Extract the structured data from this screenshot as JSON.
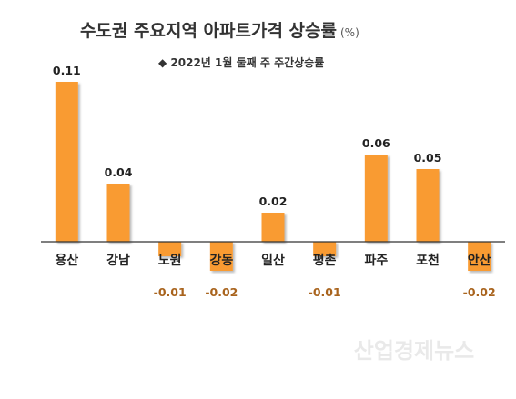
{
  "chart_data": {
    "type": "bar",
    "title": "수도권 주요지역 아파트가격 상승률",
    "unit": "(%)",
    "legend": "◆ 2022년 1월 둘째 주 주간상승률",
    "categories": [
      "용산",
      "강남",
      "노원",
      "강동",
      "일산",
      "평촌",
      "파주",
      "포천",
      "안산"
    ],
    "values": [
      0.11,
      0.04,
      -0.01,
      -0.02,
      0.02,
      -0.01,
      0.06,
      0.05,
      -0.02
    ],
    "value_labels": [
      "0.11",
      "0.04",
      "-0.01",
      "-0.02",
      "0.02",
      "-0.01",
      "0.06",
      "0.05",
      "-0.02"
    ],
    "ylim": [
      -0.02,
      0.11
    ],
    "grid": false,
    "colors": {
      "bar": "#F99B32",
      "positive_label": "#222222",
      "negative_label": "#A9641E",
      "axis": "#333333"
    }
  },
  "watermark": "산업경제뉴스"
}
